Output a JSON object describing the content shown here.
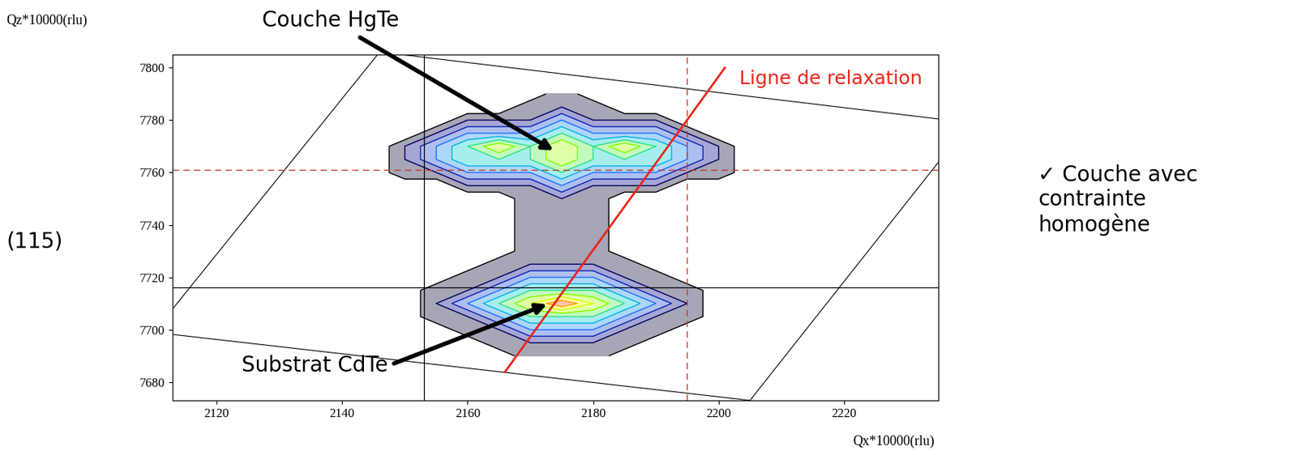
{
  "chart_data": {
    "type": "contour",
    "x_label": "Qx*10000(rlu)",
    "y_label": "Qz*10000(rlu)",
    "reflection": "(115)",
    "note": "✓ Couche avec\ncontrainte\nhomogène",
    "xlim": [
      2113,
      2235
    ],
    "ylim": [
      7673,
      7805
    ],
    "xticks": [
      2120,
      2140,
      2160,
      2180,
      2200,
      2220
    ],
    "yticks": [
      7680,
      7700,
      7720,
      7740,
      7760,
      7780,
      7800
    ],
    "x": [
      2140,
      2145,
      2150,
      2155,
      2160,
      2165,
      2170,
      2175,
      2180,
      2185,
      2190,
      2195,
      2200,
      2205,
      2210
    ],
    "y": [
      7690,
      7695,
      7700,
      7705,
      7710,
      7715,
      7720,
      7725,
      7730,
      7735,
      7740,
      7745,
      7750,
      7755,
      7760,
      7765,
      7770,
      7775,
      7780,
      7785,
      7790
    ],
    "cells": [
      [
        0,
        0,
        0,
        0,
        0,
        0,
        1,
        1,
        1,
        0,
        0,
        0,
        0,
        0,
        0
      ],
      [
        0,
        0,
        0,
        0,
        0,
        1,
        1,
        1,
        1,
        1,
        0,
        0,
        0,
        0,
        0
      ],
      [
        0,
        0,
        0,
        0,
        1,
        1,
        2,
        2,
        2,
        1,
        1,
        0,
        0,
        0,
        0
      ],
      [
        0,
        0,
        0,
        1,
        1,
        2,
        3,
        3,
        3,
        2,
        1,
        1,
        0,
        0,
        0
      ],
      [
        0,
        0,
        0,
        1,
        2,
        3,
        4,
        5,
        4,
        3,
        2,
        1,
        0,
        0,
        0
      ],
      [
        0,
        0,
        0,
        1,
        1,
        2,
        3,
        3,
        3,
        2,
        1,
        1,
        0,
        0,
        0
      ],
      [
        0,
        0,
        0,
        0,
        1,
        1,
        2,
        2,
        2,
        1,
        1,
        0,
        0,
        0,
        0
      ],
      [
        0,
        0,
        0,
        0,
        0,
        1,
        1,
        1,
        1,
        1,
        0,
        0,
        0,
        0,
        0
      ],
      [
        0,
        0,
        0,
        0,
        0,
        0,
        1,
        1,
        1,
        0,
        0,
        0,
        0,
        0,
        0
      ],
      [
        0,
        0,
        0,
        0,
        0,
        0,
        1,
        1,
        1,
        0,
        0,
        0,
        0,
        0,
        0
      ],
      [
        0,
        0,
        0,
        0,
        0,
        0,
        1,
        1,
        1,
        0,
        0,
        0,
        0,
        0,
        0
      ],
      [
        0,
        0,
        0,
        0,
        0,
        0,
        1,
        1,
        1,
        0,
        0,
        0,
        0,
        0,
        0
      ],
      [
        0,
        0,
        0,
        0,
        0,
        0,
        1,
        1,
        1,
        0,
        0,
        0,
        0,
        0,
        0
      ],
      [
        0,
        0,
        0,
        0,
        1,
        1,
        1,
        2,
        1,
        1,
        1,
        0,
        0,
        0,
        0
      ],
      [
        0,
        0,
        1,
        1,
        2,
        2,
        2,
        3,
        2,
        2,
        2,
        1,
        1,
        0,
        0
      ],
      [
        0,
        0,
        1,
        2,
        3,
        3,
        3,
        4,
        3,
        3,
        3,
        2,
        1,
        0,
        0
      ],
      [
        0,
        0,
        1,
        2,
        3,
        4,
        3,
        4,
        3,
        4,
        3,
        2,
        1,
        0,
        0
      ],
      [
        0,
        0,
        0,
        1,
        2,
        2,
        2,
        3,
        2,
        2,
        2,
        1,
        0,
        0,
        0
      ],
      [
        0,
        0,
        0,
        0,
        1,
        1,
        1,
        2,
        1,
        1,
        1,
        0,
        0,
        0,
        0
      ],
      [
        0,
        0,
        0,
        0,
        0,
        0,
        1,
        1,
        1,
        0,
        0,
        0,
        0,
        0,
        0
      ],
      [
        0,
        0,
        0,
        0,
        0,
        0,
        0,
        1,
        0,
        0,
        0,
        0,
        0,
        0,
        0
      ]
    ],
    "annotations": [
      {
        "text": "Couche HgTe",
        "x": 2174,
        "y": 7768
      },
      {
        "text": "Substrat CdTe",
        "x": 2173,
        "y": 7710
      }
    ],
    "relaxation_line": {
      "label": "Ligne de relaxation",
      "x": [
        2166,
        2201
      ],
      "y": [
        7684,
        7800
      ],
      "color": "#e8261c"
    },
    "dashed_lines": {
      "x": 2195,
      "y": 7761,
      "color": "#c0392b"
    },
    "solid_lines": {
      "x": 2153,
      "y": 7716,
      "color": "#000000"
    },
    "scan_area": {
      "x": [
        2110,
        2205,
        2240,
        2146,
        2110
      ],
      "y": [
        7699,
        7673,
        7779,
        7806,
        7699
      ]
    }
  }
}
